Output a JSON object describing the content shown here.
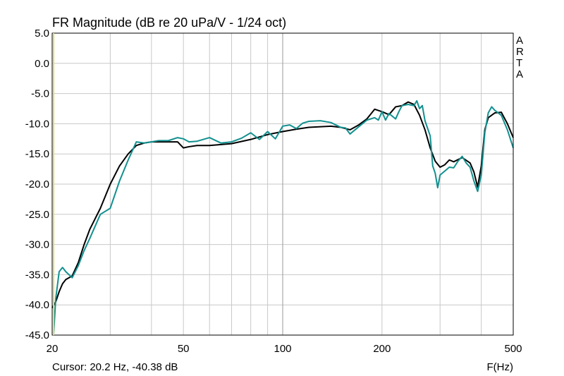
{
  "chart_data": {
    "type": "line",
    "title": "FR Magnitude (dB re 20 uPa/V - 1/24 oct)",
    "xlabel": "F(Hz)",
    "ylabel": "",
    "x_scale": "log",
    "xlim": [
      20,
      500
    ],
    "ylim": [
      -45,
      5
    ],
    "x_ticks": [
      20,
      50,
      100,
      200,
      500
    ],
    "x_tick_labels": [
      "20",
      "50",
      "100",
      "200",
      "500"
    ],
    "y_ticks": [
      5,
      0,
      -5,
      -10,
      -15,
      -20,
      -25,
      -30,
      -35,
      -40,
      -45
    ],
    "y_tick_labels": [
      "5.0",
      "0.0",
      "-5.0",
      "-10.0",
      "-15.0",
      "-20.0",
      "-25.0",
      "-30.0",
      "-35.0",
      "-40.0",
      "-45.0"
    ],
    "grid": true,
    "cursor_frequency": 20.2,
    "series": [
      {
        "color": "#000000",
        "points": [
          [
            20,
            -40.5
          ],
          [
            20.5,
            -39.5
          ],
          [
            21,
            -37.8
          ],
          [
            21.5,
            -36.5
          ],
          [
            22,
            -35.8
          ],
          [
            23,
            -35.2
          ],
          [
            24,
            -33.0
          ],
          [
            25,
            -30.0
          ],
          [
            26,
            -27.5
          ],
          [
            28,
            -24.0
          ],
          [
            30,
            -20.0
          ],
          [
            32,
            -17.0
          ],
          [
            34,
            -15.0
          ],
          [
            36,
            -13.6
          ],
          [
            38,
            -13.2
          ],
          [
            40,
            -13.0
          ],
          [
            45,
            -13.0
          ],
          [
            48,
            -13.0
          ],
          [
            50,
            -14.0
          ],
          [
            52,
            -13.8
          ],
          [
            55,
            -13.6
          ],
          [
            60,
            -13.6
          ],
          [
            70,
            -13.3
          ],
          [
            80,
            -12.6
          ],
          [
            90,
            -11.8
          ],
          [
            100,
            -11.3
          ],
          [
            110,
            -10.9
          ],
          [
            120,
            -10.6
          ],
          [
            140,
            -10.4
          ],
          [
            150,
            -10.6
          ],
          [
            160,
            -11.0
          ],
          [
            170,
            -10.2
          ],
          [
            180,
            -9.2
          ],
          [
            190,
            -7.6
          ],
          [
            200,
            -8.0
          ],
          [
            210,
            -8.5
          ],
          [
            220,
            -7.2
          ],
          [
            230,
            -7.0
          ],
          [
            240,
            -6.4
          ],
          [
            250,
            -6.8
          ],
          [
            260,
            -8.6
          ],
          [
            270,
            -11.0
          ],
          [
            280,
            -14.0
          ],
          [
            290,
            -16.2
          ],
          [
            300,
            -17.2
          ],
          [
            310,
            -16.8
          ],
          [
            320,
            -16.0
          ],
          [
            330,
            -16.3
          ],
          [
            350,
            -15.6
          ],
          [
            370,
            -16.5
          ],
          [
            380,
            -18.0
          ],
          [
            390,
            -20.5
          ],
          [
            400,
            -17.0
          ],
          [
            410,
            -11.0
          ],
          [
            420,
            -9.0
          ],
          [
            440,
            -8.2
          ],
          [
            460,
            -8.1
          ],
          [
            480,
            -10.0
          ],
          [
            500,
            -12.3
          ]
        ]
      },
      {
        "color": "#12908f",
        "points": [
          [
            20.2,
            -45.0
          ],
          [
            20.5,
            -39.0
          ],
          [
            21,
            -34.5
          ],
          [
            21.5,
            -33.8
          ],
          [
            22,
            -34.5
          ],
          [
            23,
            -35.5
          ],
          [
            24,
            -33.5
          ],
          [
            25,
            -31.0
          ],
          [
            26,
            -29.0
          ],
          [
            28,
            -25.0
          ],
          [
            30,
            -24.0
          ],
          [
            32,
            -19.5
          ],
          [
            34,
            -16.0
          ],
          [
            36,
            -13.0
          ],
          [
            38,
            -13.2
          ],
          [
            40,
            -13.0
          ],
          [
            42,
            -12.8
          ],
          [
            45,
            -12.8
          ],
          [
            48,
            -12.3
          ],
          [
            50,
            -12.5
          ],
          [
            52,
            -13.0
          ],
          [
            55,
            -12.9
          ],
          [
            60,
            -12.3
          ],
          [
            65,
            -13.2
          ],
          [
            70,
            -13.0
          ],
          [
            75,
            -12.4
          ],
          [
            80,
            -11.5
          ],
          [
            85,
            -12.6
          ],
          [
            90,
            -11.3
          ],
          [
            95,
            -12.5
          ],
          [
            100,
            -10.4
          ],
          [
            105,
            -10.2
          ],
          [
            110,
            -10.8
          ],
          [
            115,
            -9.9
          ],
          [
            120,
            -9.6
          ],
          [
            130,
            -9.5
          ],
          [
            140,
            -9.8
          ],
          [
            150,
            -10.6
          ],
          [
            155,
            -10.7
          ],
          [
            160,
            -11.7
          ],
          [
            170,
            -10.5
          ],
          [
            180,
            -9.4
          ],
          [
            190,
            -9.0
          ],
          [
            195,
            -9.4
          ],
          [
            200,
            -8.0
          ],
          [
            205,
            -9.4
          ],
          [
            210,
            -8.3
          ],
          [
            220,
            -9.2
          ],
          [
            225,
            -8.0
          ],
          [
            230,
            -7.0
          ],
          [
            240,
            -6.8
          ],
          [
            250,
            -7.0
          ],
          [
            255,
            -6.2
          ],
          [
            260,
            -7.5
          ],
          [
            265,
            -7.0
          ],
          [
            270,
            -9.5
          ],
          [
            280,
            -12.0
          ],
          [
            285,
            -17.0
          ],
          [
            290,
            -18.2
          ],
          [
            295,
            -20.6
          ],
          [
            300,
            -18.5
          ],
          [
            320,
            -17.2
          ],
          [
            330,
            -17.3
          ],
          [
            340,
            -16.2
          ],
          [
            350,
            -15.4
          ],
          [
            360,
            -16.5
          ],
          [
            370,
            -17.2
          ],
          [
            380,
            -19.5
          ],
          [
            390,
            -21.2
          ],
          [
            400,
            -18.5
          ],
          [
            410,
            -11.5
          ],
          [
            420,
            -8.2
          ],
          [
            430,
            -7.2
          ],
          [
            440,
            -7.8
          ],
          [
            460,
            -8.6
          ],
          [
            480,
            -11.0
          ],
          [
            500,
            -14.0
          ]
        ]
      }
    ]
  },
  "labels": {
    "side_text": [
      "A",
      "R",
      "T",
      "A"
    ],
    "cursor_readout": "Cursor: 20.2 Hz, -40.38 dB"
  },
  "colors": {
    "grid": "#c8c8c8",
    "frame": "#000000",
    "highlight_line": "#dede7a"
  }
}
